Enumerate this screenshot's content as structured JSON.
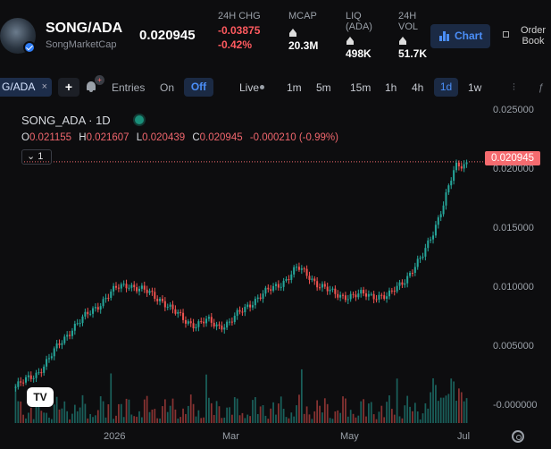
{
  "header": {
    "pair_name": "SONG/ADA",
    "source": "SongMarketCap",
    "price": "0.020945",
    "stats": [
      {
        "label": "24H CHG",
        "value": "-0.03875",
        "value2": "-0.42%"
      },
      {
        "label": "MCAP",
        "value": "20.3M"
      },
      {
        "label": "LIQ (ADA)",
        "value": "498K"
      },
      {
        "label": "24H VOL",
        "value": "51.7K"
      }
    ],
    "chart_button": "Chart",
    "order_book_button": "Order Book"
  },
  "toolbar": {
    "active_tab": "G/ADA",
    "tab_close": "×",
    "plus": "+",
    "bell_badge": "+",
    "entries": "Entries",
    "on": "On",
    "off": "Off",
    "live": "Live",
    "timeframes": [
      "1m",
      "5m",
      "15m",
      "1h",
      "4h",
      "1d",
      "1w"
    ],
    "active_timeframe": "1d"
  },
  "chart_legend": {
    "title": "SONG_ADA · 1D",
    "o_label": "O",
    "o": "0.021155",
    "h_label": "H",
    "h": "0.021607",
    "l_label": "L",
    "l": "0.020439",
    "c_label": "C",
    "c": "0.020945",
    "change": "-0.000210 (-0.99%)",
    "collapse": "1",
    "last_price_tag": "0.020945",
    "tv_logo": "TV"
  },
  "colors": {
    "up": "#26a69a",
    "down": "#ef5350",
    "accent": "#4b8ef7",
    "price_tag": "#f56b6f"
  },
  "chart_data": {
    "type": "candlestick",
    "ylim": [
      -0.0005,
      0.0255
    ],
    "y_ticks": [
      "0.025000",
      "0.020000",
      "0.015000",
      "0.010000",
      "0.005000",
      "-0.000000"
    ],
    "x_ticks": [
      "2026",
      "Mar",
      "May",
      "Jul"
    ],
    "close": [
      0.0018,
      0.0024,
      0.0031,
      0.0042,
      0.0056,
      0.0068,
      0.0076,
      0.0085,
      0.0094,
      0.0102,
      0.0106,
      0.0101,
      0.0097,
      0.0092,
      0.0082,
      0.0075,
      0.0071,
      0.0074,
      0.007,
      0.0073,
      0.0082,
      0.0091,
      0.0097,
      0.0103,
      0.011,
      0.0119,
      0.0113,
      0.0104,
      0.0098,
      0.0096,
      0.0095,
      0.0097,
      0.0096,
      0.0094,
      0.0105,
      0.0115,
      0.0127,
      0.015,
      0.0175,
      0.0205,
      0.0209
    ]
  }
}
